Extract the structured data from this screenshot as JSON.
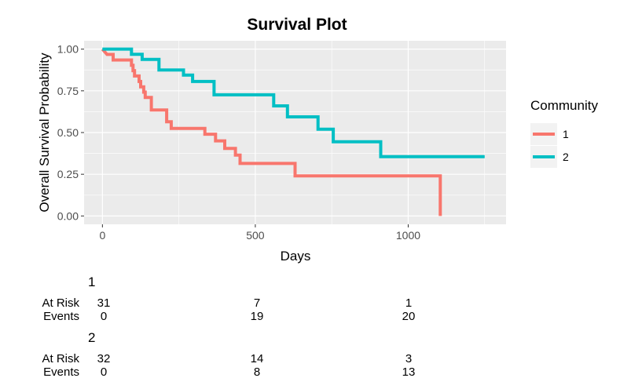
{
  "chart_data": {
    "type": "line",
    "step": true,
    "title": "Survival Plot",
    "xlabel": "Days",
    "ylabel": "Overall Survival Probability",
    "xlim": [
      -60,
      1320
    ],
    "ylim": [
      -0.05,
      1.05
    ],
    "x_ticks": [
      0,
      500,
      1000
    ],
    "x_tick_labels": [
      "0",
      "500",
      "1000"
    ],
    "y_ticks": [
      0,
      0.25,
      0.5,
      0.75,
      1.0
    ],
    "y_tick_labels": [
      "0.00",
      "0.25",
      "0.50",
      "0.75",
      "1.00"
    ],
    "grid": true,
    "legend": {
      "title": "Community",
      "placement": "right"
    },
    "series": [
      {
        "name": "1",
        "color": "#F8766D",
        "points": [
          [
            0,
            1.0
          ],
          [
            15,
            0.968
          ],
          [
            35,
            0.968
          ],
          [
            35,
            0.935
          ],
          [
            95,
            0.935
          ],
          [
            95,
            0.903
          ],
          [
            100,
            0.903
          ],
          [
            100,
            0.871
          ],
          [
            105,
            0.871
          ],
          [
            105,
            0.839
          ],
          [
            120,
            0.839
          ],
          [
            120,
            0.806
          ],
          [
            125,
            0.806
          ],
          [
            125,
            0.774
          ],
          [
            135,
            0.774
          ],
          [
            135,
            0.742
          ],
          [
            140,
            0.742
          ],
          [
            140,
            0.71
          ],
          [
            160,
            0.71
          ],
          [
            160,
            0.635
          ],
          [
            210,
            0.635
          ],
          [
            210,
            0.565
          ],
          [
            225,
            0.565
          ],
          [
            225,
            0.525
          ],
          [
            335,
            0.525
          ],
          [
            335,
            0.49
          ],
          [
            370,
            0.49
          ],
          [
            370,
            0.45
          ],
          [
            400,
            0.45
          ],
          [
            400,
            0.405
          ],
          [
            435,
            0.405
          ],
          [
            435,
            0.365
          ],
          [
            450,
            0.365
          ],
          [
            450,
            0.315
          ],
          [
            630,
            0.315
          ],
          [
            630,
            0.24
          ],
          [
            1105,
            0.24
          ],
          [
            1105,
            0.0
          ]
        ]
      },
      {
        "name": "2",
        "color": "#00BFC4",
        "points": [
          [
            0,
            1.0
          ],
          [
            95,
            1.0
          ],
          [
            95,
            0.969
          ],
          [
            130,
            0.969
          ],
          [
            130,
            0.938
          ],
          [
            185,
            0.938
          ],
          [
            185,
            0.875
          ],
          [
            265,
            0.875
          ],
          [
            265,
            0.844
          ],
          [
            295,
            0.844
          ],
          [
            295,
            0.806
          ],
          [
            365,
            0.806
          ],
          [
            365,
            0.726
          ],
          [
            560,
            0.726
          ],
          [
            560,
            0.66
          ],
          [
            605,
            0.66
          ],
          [
            605,
            0.594
          ],
          [
            705,
            0.594
          ],
          [
            705,
            0.52
          ],
          [
            755,
            0.52
          ],
          [
            755,
            0.445
          ],
          [
            910,
            0.445
          ],
          [
            910,
            0.355
          ],
          [
            1250,
            0.355
          ]
        ]
      }
    ]
  },
  "risk_table": {
    "times": [
      0,
      500,
      1000
    ],
    "row_labels": {
      "at_risk": "At Risk",
      "events": "Events"
    },
    "groups": [
      {
        "name": "1",
        "at_risk": [
          "31",
          "7",
          "1"
        ],
        "events": [
          "0",
          "19",
          "20"
        ]
      },
      {
        "name": "2",
        "at_risk": [
          "32",
          "14",
          "3"
        ],
        "events": [
          "0",
          "8",
          "13"
        ]
      }
    ]
  }
}
